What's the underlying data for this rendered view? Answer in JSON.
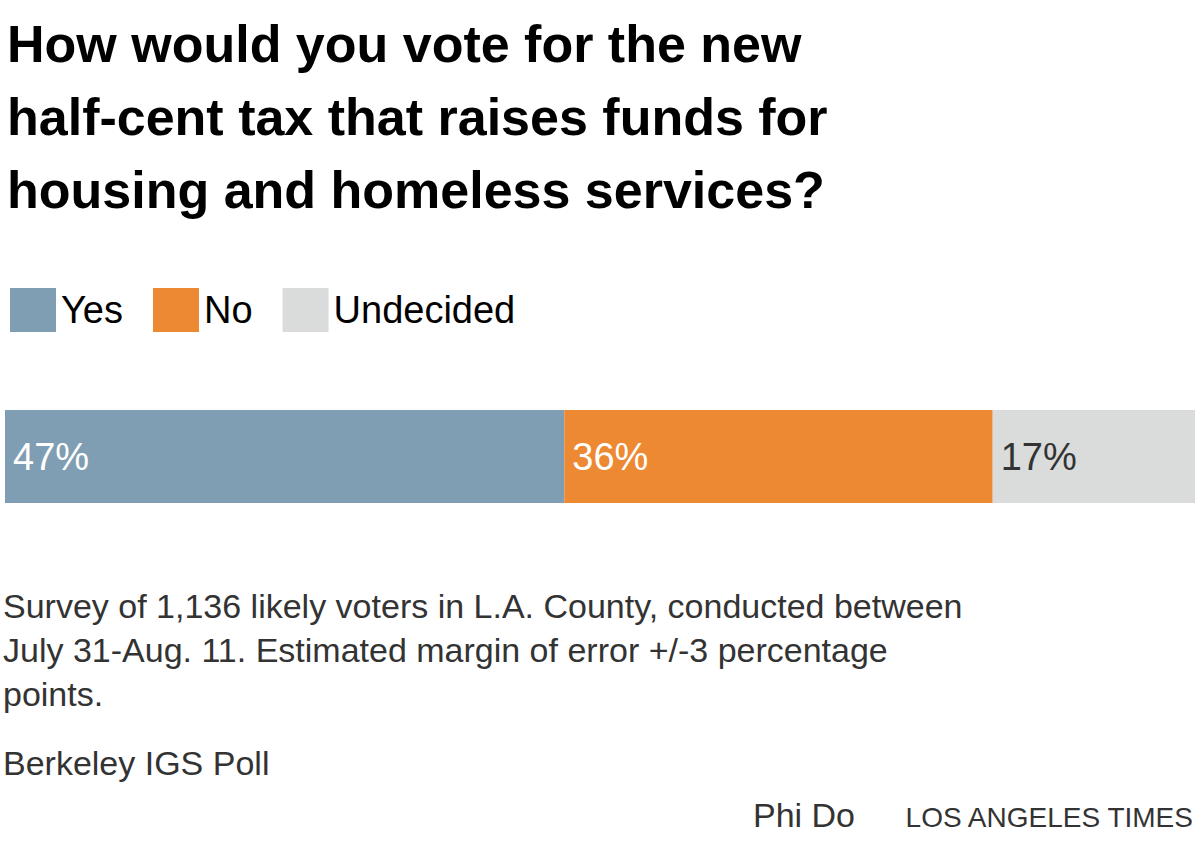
{
  "chart_data": {
    "type": "bar",
    "title": "How would you vote for the new\nhalf-cent tax that raises funds for\nhousing and homeless services?",
    "orientation": "horizontal",
    "stacked": true,
    "categories": [
      null
    ],
    "series": [
      {
        "name": "Yes",
        "color": "#809eb3",
        "values": [
          47
        ],
        "value_labels": [
          "47%"
        ]
      },
      {
        "name": "No",
        "color": "#ed8833",
        "values": [
          36
        ],
        "value_labels": [
          "36%"
        ]
      },
      {
        "name": "Undecided",
        "color": "#dadbdb",
        "values": [
          17
        ],
        "value_labels": [
          "17%"
        ]
      }
    ],
    "xlim": [
      0,
      100
    ],
    "grid": false,
    "tick_labels": false,
    "legend": "top-left",
    "data_labels": true,
    "caption": "Survey of 1,136 likely voters in L.A. County, conducted between\nJuly 31-Aug. 11. Estimated margin of error +/-3 percentage\npoints.",
    "source": "Berkeley IGS Poll",
    "credit": "Phi Do",
    "publisher": "LOS ANGELES TIMES"
  }
}
